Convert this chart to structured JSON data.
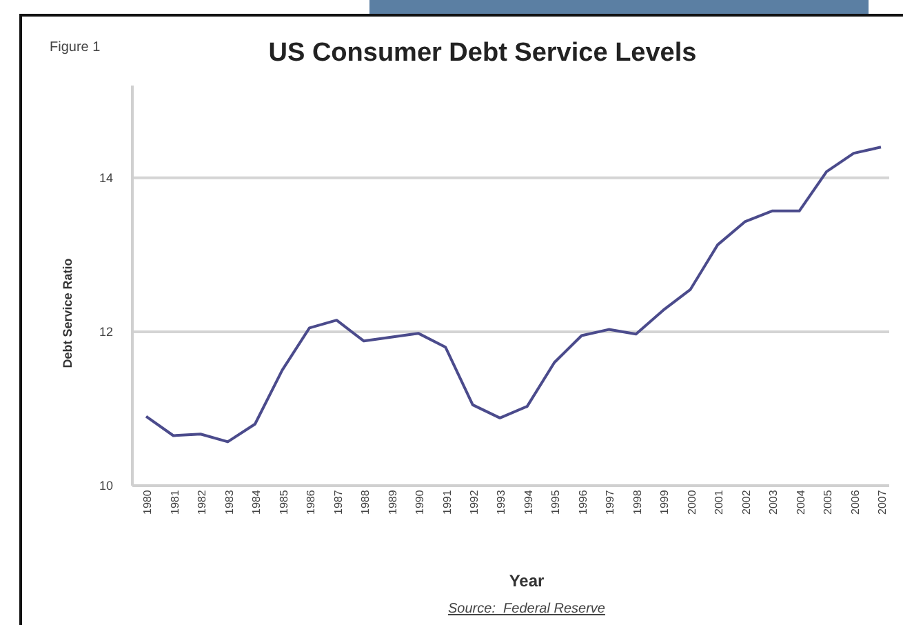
{
  "chart_data": {
    "type": "line",
    "title": "US Consumer Debt Service Levels",
    "xlabel": "Year",
    "ylabel": "Debt Service Ratio",
    "annotations": [
      "Figure 1",
      "Source:  Federal Reserve"
    ],
    "categories": [
      "1980",
      "1981",
      "1982",
      "1983",
      "1984",
      "1985",
      "1986",
      "1987",
      "1988",
      "1989",
      "1990",
      "1991",
      "1992",
      "1993",
      "1994",
      "1995",
      "1996",
      "1997",
      "1998",
      "1999",
      "2000",
      "2001",
      "2002",
      "2003",
      "2004",
      "2005",
      "2006",
      "2007"
    ],
    "series": [
      {
        "color": "#4b4b8c",
        "values": [
          10.9,
          10.65,
          10.67,
          10.57,
          10.8,
          11.5,
          12.05,
          12.15,
          11.88,
          11.93,
          11.98,
          11.8,
          11.05,
          10.88,
          11.03,
          11.6,
          11.95,
          12.03,
          11.97,
          12.28,
          12.55,
          13.13,
          13.43,
          13.57,
          13.57,
          14.08,
          14.32,
          14.4
        ]
      }
    ],
    "ylim": [
      10,
      15.2
    ],
    "yticks": [
      10,
      12,
      14
    ],
    "grid": "y",
    "marker": "none",
    "line_style": "solid"
  }
}
